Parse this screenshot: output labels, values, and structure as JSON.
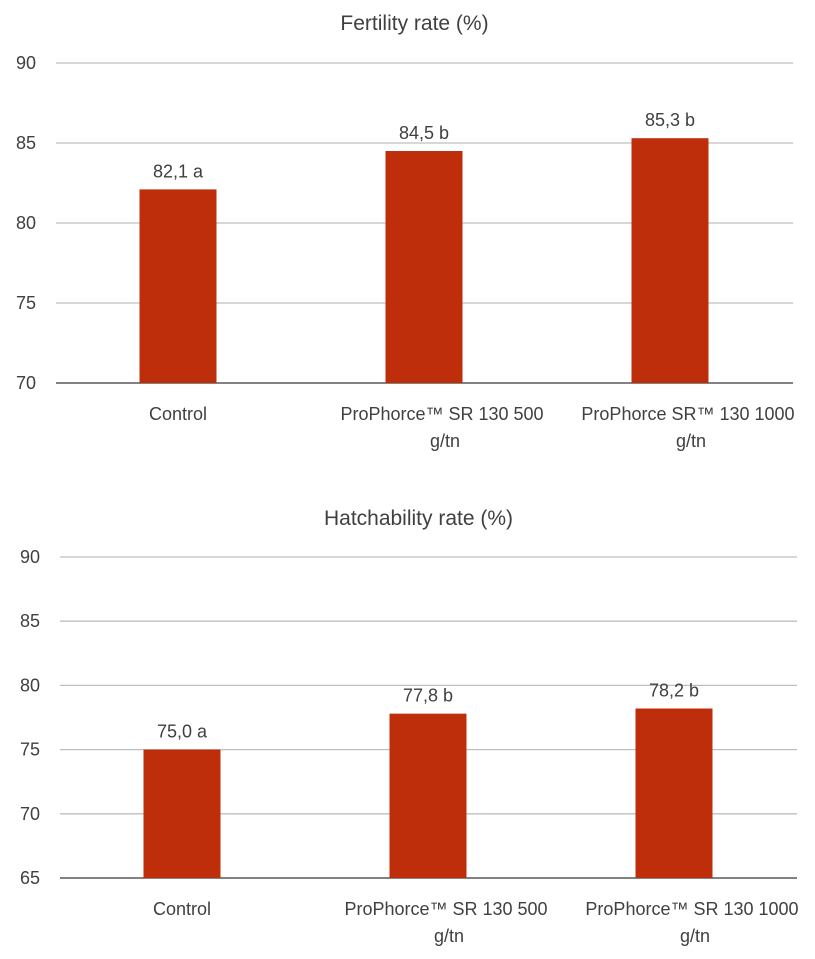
{
  "chart_data": [
    {
      "type": "bar",
      "title": "Fertility rate (%)",
      "categories": [
        [
          "Control"
        ],
        [
          "ProPhorce™ SR 130  500",
          "g/tn"
        ],
        [
          "ProPhorce SR™ 130  1000",
          "g/tn"
        ]
      ],
      "values": [
        82.1,
        84.5,
        85.3
      ],
      "data_labels": [
        "82,1 a",
        "84,5 b",
        "85,3 b"
      ],
      "yticks": [
        "70",
        "75",
        "80",
        "85",
        "90"
      ],
      "ylim": [
        70,
        90
      ],
      "grid": true,
      "color": "#bf2e0a"
    },
    {
      "type": "bar",
      "title": "Hatchability rate (%)",
      "categories": [
        [
          "Control"
        ],
        [
          "ProPhorce™ SR 130  500",
          "g/tn"
        ],
        [
          "ProPhorce™ SR 130  1000",
          "g/tn"
        ]
      ],
      "values": [
        75.0,
        77.8,
        78.2
      ],
      "data_labels": [
        "75,0 a",
        "77,8 b",
        "78,2 b"
      ],
      "yticks": [
        "65",
        "70",
        "75",
        "80",
        "85",
        "90"
      ],
      "ylim": [
        65,
        90
      ],
      "grid": true,
      "color": "#bf2e0a"
    }
  ]
}
